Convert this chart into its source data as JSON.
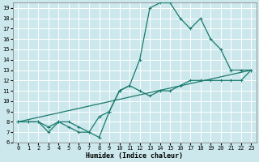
{
  "xlabel": "Humidex (Indice chaleur)",
  "xlim": [
    -0.5,
    23.5
  ],
  "ylim": [
    6,
    19.5
  ],
  "xticks": [
    0,
    1,
    2,
    3,
    4,
    5,
    6,
    7,
    8,
    9,
    10,
    11,
    12,
    13,
    14,
    15,
    16,
    17,
    18,
    19,
    20,
    21,
    22,
    23
  ],
  "yticks": [
    6,
    7,
    8,
    9,
    10,
    11,
    12,
    13,
    14,
    15,
    16,
    17,
    18,
    19
  ],
  "bg_color": "#cce8ec",
  "grid_color": "#ffffff",
  "line_color": "#1a7a6e",
  "line1_x": [
    0,
    1,
    2,
    3,
    4,
    5,
    6,
    7,
    8,
    9,
    10,
    11,
    12,
    13,
    14,
    15,
    16,
    17,
    18,
    19,
    20,
    21,
    22,
    23
  ],
  "line1_y": [
    8,
    8,
    8,
    7,
    8,
    7.5,
    7,
    7,
    8.5,
    9,
    11,
    11.5,
    14,
    19,
    19.5,
    19.5,
    18,
    17,
    18,
    16,
    15,
    13,
    13,
    13
  ],
  "line2_x": [
    0,
    1,
    2,
    3,
    3,
    4,
    5,
    6,
    7,
    8,
    9,
    10,
    11,
    12,
    13,
    14,
    15,
    16,
    17,
    18,
    19,
    20,
    21,
    22,
    23
  ],
  "line2_y": [
    8,
    8,
    8,
    7.5,
    7.5,
    8,
    8,
    7.5,
    7,
    6.5,
    9,
    11,
    11.5,
    11,
    10.5,
    11,
    11,
    11.5,
    12,
    12,
    12,
    12,
    12,
    12,
    13
  ],
  "line3_x": [
    0,
    23
  ],
  "line3_y": [
    8,
    13
  ]
}
